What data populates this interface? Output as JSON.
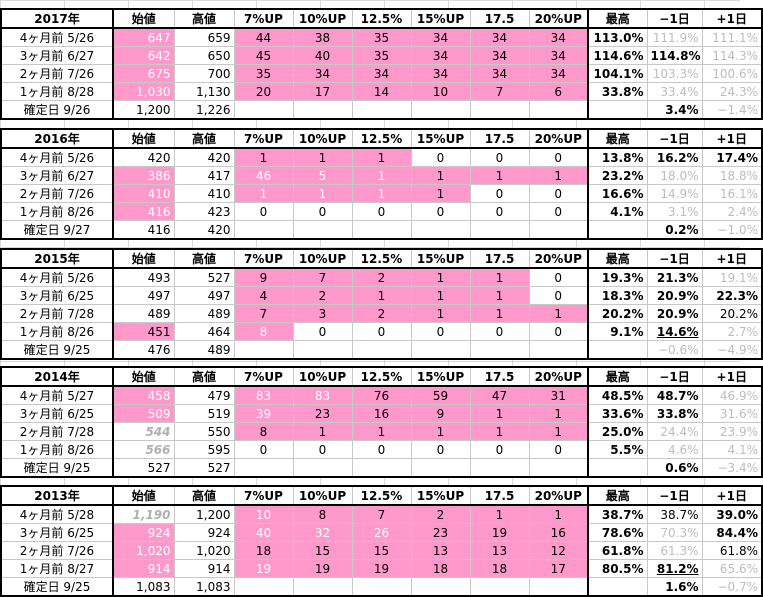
{
  "headers": [
    "始値",
    "高値",
    "7%UP",
    "10%UP",
    "12.5%",
    "15%UP",
    "17.5",
    "20%UP",
    "最高",
    "−1日",
    "+1日"
  ],
  "blocks": [
    {
      "year": "2017年",
      "rows": [
        {
          "label": "4ヶ月前  5/26",
          "open": "647",
          "high": "659",
          "u7": "44",
          "u10": "38",
          "u125": "35",
          "u15": "34",
          "u175": "34",
          "u20": "34",
          "max": "113.0%",
          "m1": "111.9%",
          "p1": "111.1%"
        },
        {
          "label": "3ヶ月前  6/27",
          "open": "642",
          "high": "650",
          "u7": "45",
          "u10": "40",
          "u125": "35",
          "u15": "34",
          "u175": "34",
          "u20": "34",
          "max": "114.6%",
          "m1": "114.8%",
          "p1": "114.3%"
        },
        {
          "label": "2ヶ月前  7/26",
          "open": "675",
          "high": "700",
          "u7": "35",
          "u10": "34",
          "u125": "34",
          "u15": "34",
          "u175": "34",
          "u20": "34",
          "max": "104.1%",
          "m1": "103.3%",
          "p1": "100.6%"
        },
        {
          "label": "1ヶ月前  8/28",
          "open": "1,030",
          "high": "1,130",
          "u7": "20",
          "u10": "17",
          "u125": "14",
          "u15": "10",
          "u175": "7",
          "u20": "6",
          "max": "33.8%",
          "m1": "33.4%",
          "p1": "24.3%"
        },
        {
          "label": "確定日  9/26",
          "open": "1,200",
          "high": "1,226",
          "u7": "",
          "u10": "",
          "u125": "",
          "u15": "",
          "u175": "",
          "u20": "",
          "max": "",
          "m1": "3.4%",
          "p1": "−1.4%"
        }
      ]
    },
    {
      "year": "2016年",
      "rows": [
        {
          "label": "4ヶ月前  5/26",
          "open": "420",
          "high": "420",
          "u7": "1",
          "u10": "1",
          "u125": "1",
          "u15": "0",
          "u175": "0",
          "u20": "0",
          "max": "13.8%",
          "m1": "16.2%",
          "p1": "17.4%"
        },
        {
          "label": "3ヶ月前  6/27",
          "open": "386",
          "high": "417",
          "u7": "46",
          "u10": "5",
          "u125": "1",
          "u15": "1",
          "u175": "1",
          "u20": "1",
          "max": "23.2%",
          "m1": "18.0%",
          "p1": "18.8%"
        },
        {
          "label": "2ヶ月前  7/26",
          "open": "410",
          "high": "410",
          "u7": "1",
          "u10": "1",
          "u125": "1",
          "u15": "1",
          "u175": "0",
          "u20": "0",
          "max": "16.6%",
          "m1": "14.9%",
          "p1": "16.1%"
        },
        {
          "label": "1ヶ月前  8/26",
          "open": "416",
          "high": "423",
          "u7": "0",
          "u10": "0",
          "u125": "0",
          "u15": "0",
          "u175": "0",
          "u20": "0",
          "max": "4.1%",
          "m1": "3.1%",
          "p1": "2.4%"
        },
        {
          "label": "確定日  9/27",
          "open": "416",
          "high": "420",
          "u7": "",
          "u10": "",
          "u125": "",
          "u15": "",
          "u175": "",
          "u20": "",
          "max": "",
          "m1": "0.2%",
          "p1": "−1.0%"
        }
      ]
    },
    {
      "year": "2015年",
      "rows": [
        {
          "label": "4ヶ月前  5/26",
          "open": "493",
          "high": "527",
          "u7": "9",
          "u10": "7",
          "u125": "2",
          "u15": "1",
          "u175": "1",
          "u20": "0",
          "max": "19.3%",
          "m1": "21.3%",
          "p1": "19.1%"
        },
        {
          "label": "3ヶ月前  6/25",
          "open": "497",
          "high": "497",
          "u7": "4",
          "u10": "2",
          "u125": "1",
          "u15": "1",
          "u175": "1",
          "u20": "0",
          "max": "18.3%",
          "m1": "20.9%",
          "p1": "22.3%"
        },
        {
          "label": "2ヶ月前  7/28",
          "open": "489",
          "high": "489",
          "u7": "7",
          "u10": "3",
          "u125": "2",
          "u15": "1",
          "u175": "1",
          "u20": "1",
          "max": "20.2%",
          "m1": "20.9%",
          "p1": "20.2%"
        },
        {
          "label": "1ヶ月前  8/26",
          "open": "451",
          "high": "464",
          "u7": "8",
          "u10": "0",
          "u125": "0",
          "u15": "0",
          "u175": "0",
          "u20": "0",
          "max": "9.1%",
          "m1": "14.6%",
          "p1": "2.7%"
        },
        {
          "label": "確定日  9/25",
          "open": "476",
          "high": "489",
          "u7": "",
          "u10": "",
          "u125": "",
          "u15": "",
          "u175": "",
          "u20": "",
          "max": "",
          "m1": "−0.6%",
          "p1": "−4.9%"
        }
      ]
    },
    {
      "year": "2014年",
      "rows": [
        {
          "label": "4ヶ月前  5/27",
          "open": "458",
          "high": "479",
          "u7": "83",
          "u10": "83",
          "u125": "76",
          "u15": "59",
          "u175": "47",
          "u20": "31",
          "max": "48.5%",
          "m1": "48.7%",
          "p1": "46.9%"
        },
        {
          "label": "3ヶ月前  6/25",
          "open": "509",
          "high": "519",
          "u7": "39",
          "u10": "23",
          "u125": "16",
          "u15": "9",
          "u175": "1",
          "u20": "1",
          "max": "33.6%",
          "m1": "33.8%",
          "p1": "31.6%"
        },
        {
          "label": "2ヶ月前  7/28",
          "open": "544",
          "high": "550",
          "u7": "8",
          "u10": "1",
          "u125": "1",
          "u15": "1",
          "u175": "1",
          "u20": "1",
          "max": "25.0%",
          "m1": "24.4%",
          "p1": "23.9%"
        },
        {
          "label": "1ヶ月前  8/26",
          "open": "566",
          "high": "595",
          "u7": "0",
          "u10": "0",
          "u125": "0",
          "u15": "0",
          "u175": "0",
          "u20": "0",
          "max": "5.5%",
          "m1": "4.6%",
          "p1": "4.1%"
        },
        {
          "label": "確定日  9/25",
          "open": "527",
          "high": "527",
          "u7": "",
          "u10": "",
          "u125": "",
          "u15": "",
          "u175": "",
          "u20": "",
          "max": "",
          "m1": "0.6%",
          "p1": "−3.4%"
        }
      ]
    },
    {
      "year": "2013年",
      "rows": [
        {
          "label": "4ヶ月前  5/28",
          "open": "1,190",
          "high": "1,200",
          "u7": "10",
          "u10": "8",
          "u125": "7",
          "u15": "2",
          "u175": "1",
          "u20": "1",
          "max": "38.7%",
          "m1": "38.7%",
          "p1": "39.0%"
        },
        {
          "label": "3ヶ月前  6/25",
          "open": "924",
          "high": "924",
          "u7": "40",
          "u10": "32",
          "u125": "26",
          "u15": "23",
          "u175": "19",
          "u20": "16",
          "max": "78.6%",
          "m1": "70.3%",
          "p1": "84.4%"
        },
        {
          "label": "2ヶ月前  7/26",
          "open": "1,020",
          "high": "1,020",
          "u7": "18",
          "u10": "15",
          "u125": "15",
          "u15": "13",
          "u175": "13",
          "u20": "12",
          "max": "61.8%",
          "m1": "61.3%",
          "p1": "61.8%"
        },
        {
          "label": "1ヶ月前  8/27",
          "open": "914",
          "high": "914",
          "u7": "19",
          "u10": "19",
          "u125": "19",
          "u15": "18",
          "u175": "18",
          "u20": "17",
          "max": "80.5%",
          "m1": "81.2%",
          "p1": "65.6%"
        },
        {
          "label": "確定日  9/25",
          "open": "1,083",
          "high": "1,083",
          "u7": "",
          "u10": "",
          "u125": "",
          "u15": "",
          "u175": "",
          "u20": "",
          "max": "",
          "m1": "1.6%",
          "p1": "−0.7%"
        }
      ]
    }
  ]
}
